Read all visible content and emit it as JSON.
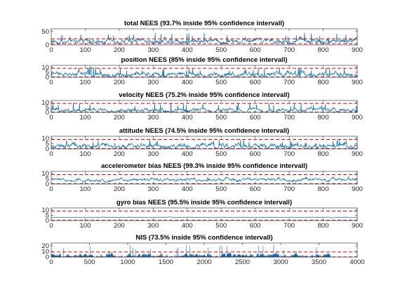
{
  "chart_data": [
    {
      "type": "line",
      "title": "total NEES (93.7% inside 95% confidence intervall)",
      "xlim": [
        0,
        900
      ],
      "ylim": [
        0,
        60
      ],
      "xticks": [
        "0",
        "100",
        "200",
        "300",
        "400",
        "500",
        "600",
        "700",
        "800",
        "900"
      ],
      "yticks": [
        "0",
        "50"
      ],
      "bounds": [
        4.5,
        22.5
      ],
      "series": [
        {
          "color": "#0072bd",
          "baseline": 15,
          "spread": 10,
          "peak": 45,
          "peak_rate": 0.035
        }
      ]
    },
    {
      "type": "line",
      "title": "position NEES (85% inside 95% confidence intervall)",
      "xlim": [
        0,
        900
      ],
      "ylim": [
        0,
        12
      ],
      "xticks": [
        "0",
        "100",
        "200",
        "300",
        "400",
        "500",
        "600",
        "700",
        "800",
        "900"
      ],
      "yticks": [
        "0",
        "5",
        "10"
      ],
      "bounds": [
        0.3,
        9.0
      ],
      "series": [
        {
          "color": "#0072bd",
          "baseline": 3,
          "spread": 2.5,
          "peak": 11,
          "peak_rate": 0.03
        }
      ]
    },
    {
      "type": "line",
      "title": "velocity NEES (75.2% inside 95% confidence intervall)",
      "xlim": [
        0,
        900
      ],
      "ylim": [
        0,
        12
      ],
      "xticks": [
        "0",
        "100",
        "200",
        "300",
        "400",
        "500",
        "600",
        "700",
        "800",
        "900"
      ],
      "yticks": [
        "0",
        "5",
        "10"
      ],
      "bounds": [
        0.3,
        9.0
      ],
      "series": [
        {
          "color": "#0072bd",
          "baseline": 2,
          "spread": 2,
          "peak": 10,
          "peak_rate": 0.03
        }
      ]
    },
    {
      "type": "line",
      "title": "attitude NEES (74.5% inside 95% confidence intervall)",
      "xlim": [
        0,
        900
      ],
      "ylim": [
        0,
        12
      ],
      "xticks": [
        "0",
        "100",
        "200",
        "300",
        "400",
        "500",
        "600",
        "700",
        "800",
        "900"
      ],
      "yticks": [
        "0",
        "5",
        "10"
      ],
      "bounds": [
        0.3,
        9.0
      ],
      "series": [
        {
          "color": "#0072bd",
          "baseline": 2.5,
          "spread": 2.5,
          "peak": 9,
          "peak_rate": 0.03
        }
      ]
    },
    {
      "type": "line",
      "title": "accelerometer bias NEES (99.3% inside 95% confidence intervall)",
      "xlim": [
        0,
        900
      ],
      "ylim": [
        0,
        12
      ],
      "xticks": [
        "0",
        "100",
        "200",
        "300",
        "400",
        "500",
        "600",
        "700",
        "800",
        "900"
      ],
      "yticks": [
        "0",
        "5",
        "10"
      ],
      "bounds": [
        0.3,
        9.0
      ],
      "series": [
        {
          "color": "#0072bd",
          "baseline": 4,
          "spread": 1.5,
          "peak": 9,
          "peak_rate": 0.004
        }
      ]
    },
    {
      "type": "line",
      "title": "gyro bias NEES (95.5% inside 95% confidence intervall)",
      "xlim": [
        0,
        900
      ],
      "ylim": [
        0,
        12
      ],
      "xticks": [
        "0",
        "100",
        "200",
        "300",
        "400",
        "500",
        "600",
        "700",
        "800",
        "900"
      ],
      "yticks": [
        "0",
        "5",
        "10"
      ],
      "bounds": [
        0.3,
        9.0
      ],
      "series": [
        {
          "color": "#0072bd",
          "baseline": 3,
          "spread": 0.3,
          "peak": 3,
          "peak_rate": 0
        }
      ]
    },
    {
      "type": "bar",
      "title": "NIS (73.5% inside 95% confidence intervall)",
      "xlim": [
        0,
        4000
      ],
      "ylim": [
        0,
        25
      ],
      "xticks": [
        "0",
        "500",
        "1000",
        "1500",
        "2000",
        "2500",
        "3000",
        "3500",
        "4000"
      ],
      "yticks": [
        "0",
        "10",
        "20"
      ],
      "bounds": [
        0.3,
        9.0
      ],
      "data_start": 0,
      "data_end": 3650,
      "series": [
        {
          "color": "#0072bd",
          "baseline": 2,
          "spread": 4,
          "peak": 22,
          "peak_rate": 0.02
        }
      ]
    }
  ],
  "colors": {
    "line": "#0072bd",
    "bounds": "#ff0000",
    "axes": "#262626",
    "background": "#ffffff"
  }
}
